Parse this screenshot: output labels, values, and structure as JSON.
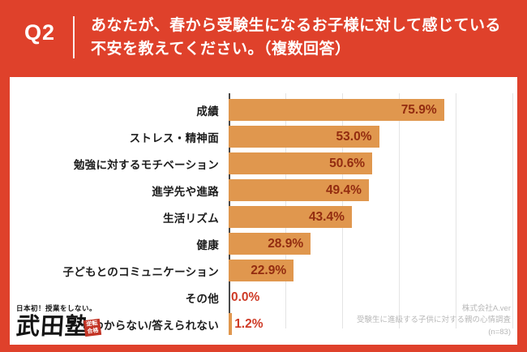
{
  "header": {
    "question_number": "Q2",
    "question_line1": "あなたが、春から受験生になるお子様に対して感じている",
    "question_line2": "不安を教えてください。（複数回答）"
  },
  "chart_data": {
    "type": "bar",
    "orientation": "horizontal",
    "categories": [
      "成績",
      "ストレス・精神面",
      "勉強に対するモチベーション",
      "進学先や進路",
      "生活リズム",
      "健康",
      "子どもとのコミュニケーション",
      "その他",
      "わからない/答えられない"
    ],
    "values": [
      75.9,
      53.0,
      50.6,
      49.4,
      43.4,
      28.9,
      22.9,
      0.0,
      1.2
    ],
    "value_labels": [
      "75.9%",
      "53.0%",
      "50.6%",
      "49.4%",
      "43.4%",
      "28.9%",
      "22.9%",
      "0.0%",
      "1.2%"
    ],
    "xlim": [
      0,
      100
    ],
    "gridline_interval_pct": 20,
    "grid": true,
    "legend": false,
    "title": ""
  },
  "style": {
    "background_red": "#DF412B",
    "bar_color": "#E0974E",
    "value_color_inside": "#932C10",
    "value_color_outside": "#CE3A26",
    "gridline_color": "#E4E4E4",
    "axis_color": "#4A4A4A"
  },
  "logo": {
    "tagline": "日本初！授業をしない。",
    "brand": "武田塾",
    "seal_top": "逆転",
    "seal_bottom": "合格"
  },
  "credit": {
    "line1": "株式会社A.ver",
    "line2": "受験生に進級する子供に対する親の心情調査",
    "line3": "(n=83)"
  }
}
